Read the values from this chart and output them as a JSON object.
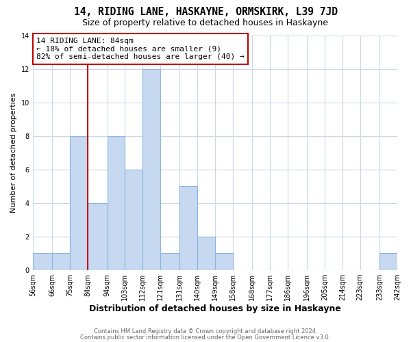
{
  "title": "14, RIDING LANE, HASKAYNE, ORMSKIRK, L39 7JD",
  "subtitle": "Size of property relative to detached houses in Haskayne",
  "xlabel": "Distribution of detached houses by size in Haskayne",
  "ylabel": "Number of detached properties",
  "bin_edges": [
    56,
    66,
    75,
    84,
    94,
    103,
    112,
    121,
    131,
    140,
    149,
    158,
    168,
    177,
    186,
    196,
    205,
    214,
    223,
    233,
    242
  ],
  "counts": [
    1,
    1,
    8,
    4,
    8,
    6,
    12,
    1,
    5,
    2,
    1,
    0,
    0,
    0,
    0,
    0,
    0,
    0,
    0,
    1
  ],
  "bar_color": "#c6d9f0",
  "bar_edge_color": "#8db4e2",
  "reference_line_x": 84,
  "reference_line_color": "#c00000",
  "annotation_line1": "14 RIDING LANE: 84sqm",
  "annotation_line2": "← 18% of detached houses are smaller (9)",
  "annotation_line3": "82% of semi-detached houses are larger (40) →",
  "annotation_box_color": "#ffffff",
  "annotation_box_edge_color": "#c00000",
  "ylim": [
    0,
    14
  ],
  "tick_labels": [
    "56sqm",
    "66sqm",
    "75sqm",
    "84sqm",
    "94sqm",
    "103sqm",
    "112sqm",
    "121sqm",
    "131sqm",
    "140sqm",
    "149sqm",
    "158sqm",
    "168sqm",
    "177sqm",
    "186sqm",
    "196sqm",
    "205sqm",
    "214sqm",
    "223sqm",
    "233sqm",
    "242sqm"
  ],
  "footer1": "Contains HM Land Registry data © Crown copyright and database right 2024.",
  "footer2": "Contains public sector information licensed under the Open Government Licence v3.0.",
  "bg_color": "#ffffff",
  "grid_color": "#c8d8e8",
  "title_fontsize": 10.5,
  "subtitle_fontsize": 9,
  "xlabel_fontsize": 9,
  "ylabel_fontsize": 8,
  "tick_fontsize": 7,
  "annotation_fontsize": 8,
  "footer_fontsize": 6
}
